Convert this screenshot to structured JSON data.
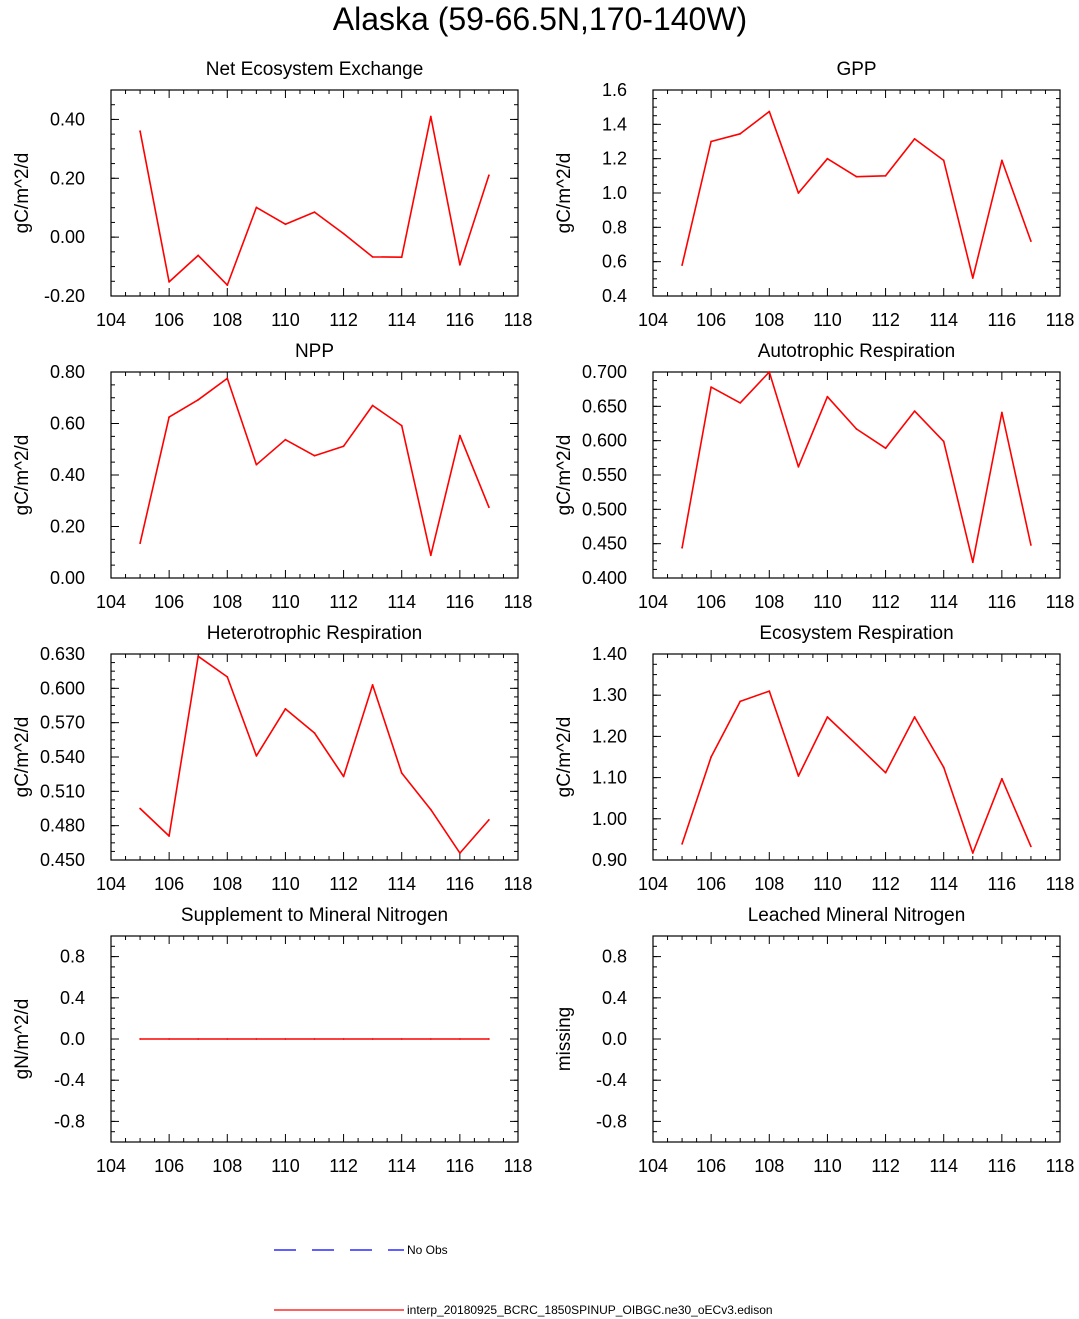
{
  "title": "Alaska (59-66.5N,170-140W)",
  "colors": {
    "model": "#ff0000",
    "obs": "#0000ff",
    "axis": "#000000"
  },
  "legend": {
    "obs_label": "No Obs",
    "model_label": "interp_20180925_BCRC_1850SPINUP_OIBGC.ne30_oECv3.edison"
  },
  "chart_data": [
    {
      "type": "line",
      "title": "Net Ecosystem Exchange",
      "ylabel": "gC/m^2/d",
      "xlim": [
        104,
        118
      ],
      "ylim": [
        -0.2,
        0.5
      ],
      "x_ticks": [
        "104",
        "106",
        "108",
        "110",
        "112",
        "114",
        "116",
        "118"
      ],
      "y_ticks": [
        {
          "v": -0.2,
          "label": "-0.20"
        },
        {
          "v": 0.0,
          "label": "0.00"
        },
        {
          "v": 0.2,
          "label": "0.20"
        },
        {
          "v": 0.4,
          "label": "0.40"
        }
      ],
      "y_minor_step": 0.05,
      "series": [
        {
          "name": "model",
          "x": [
            105,
            106,
            107,
            108,
            109,
            110,
            111,
            112,
            113,
            114,
            115,
            116,
            117
          ],
          "values": [
            0.36,
            -0.152,
            -0.062,
            -0.163,
            0.101,
            0.044,
            0.085,
            0.012,
            -0.067,
            -0.068,
            0.41,
            -0.094,
            0.21
          ]
        }
      ]
    },
    {
      "type": "line",
      "title": "GPP",
      "ylabel": "gC/m^2/d",
      "xlim": [
        104,
        118
      ],
      "ylim": [
        0.4,
        1.6
      ],
      "x_ticks": [
        "104",
        "106",
        "108",
        "110",
        "112",
        "114",
        "116",
        "118"
      ],
      "y_ticks": [
        {
          "v": 0.4,
          "label": "0.4"
        },
        {
          "v": 0.6,
          "label": "0.6"
        },
        {
          "v": 0.8,
          "label": "0.8"
        },
        {
          "v": 1.0,
          "label": "1.0"
        },
        {
          "v": 1.2,
          "label": "1.2"
        },
        {
          "v": 1.4,
          "label": "1.4"
        },
        {
          "v": 1.6,
          "label": "1.6"
        }
      ],
      "y_minor_step": 0.05,
      "series": [
        {
          "name": "model",
          "x": [
            105,
            106,
            107,
            108,
            109,
            110,
            111,
            112,
            113,
            114,
            115,
            116,
            117
          ],
          "values": [
            0.58,
            1.3,
            1.345,
            1.475,
            1.0,
            1.2,
            1.095,
            1.1,
            1.315,
            1.19,
            0.505,
            1.19,
            0.72
          ]
        }
      ]
    },
    {
      "type": "line",
      "title": "NPP",
      "ylabel": "gC/m^2/d",
      "xlim": [
        104,
        118
      ],
      "ylim": [
        0.0,
        0.8
      ],
      "x_ticks": [
        "104",
        "106",
        "108",
        "110",
        "112",
        "114",
        "116",
        "118"
      ],
      "y_ticks": [
        {
          "v": 0.0,
          "label": "0.00"
        },
        {
          "v": 0.2,
          "label": "0.20"
        },
        {
          "v": 0.4,
          "label": "0.40"
        },
        {
          "v": 0.6,
          "label": "0.60"
        },
        {
          "v": 0.8,
          "label": "0.80"
        }
      ],
      "y_minor_step": 0.05,
      "series": [
        {
          "name": "model",
          "x": [
            105,
            106,
            107,
            108,
            109,
            110,
            111,
            112,
            113,
            114,
            115,
            116,
            117
          ],
          "values": [
            0.135,
            0.625,
            0.692,
            0.775,
            0.44,
            0.537,
            0.475,
            0.512,
            0.67,
            0.592,
            0.088,
            0.553,
            0.275
          ]
        }
      ]
    },
    {
      "type": "line",
      "title": "Autotrophic Respiration",
      "ylabel": "gC/m^2/d",
      "xlim": [
        104,
        118
      ],
      "ylim": [
        0.4,
        0.7
      ],
      "x_ticks": [
        "104",
        "106",
        "108",
        "110",
        "112",
        "114",
        "116",
        "118"
      ],
      "y_ticks": [
        {
          "v": 0.4,
          "label": "0.400"
        },
        {
          "v": 0.45,
          "label": "0.450"
        },
        {
          "v": 0.5,
          "label": "0.500"
        },
        {
          "v": 0.55,
          "label": "0.550"
        },
        {
          "v": 0.6,
          "label": "0.600"
        },
        {
          "v": 0.65,
          "label": "0.650"
        },
        {
          "v": 0.7,
          "label": "0.700"
        }
      ],
      "y_minor_step": 0.0125,
      "series": [
        {
          "name": "model",
          "x": [
            105,
            106,
            107,
            108,
            109,
            110,
            111,
            112,
            113,
            114,
            115,
            116,
            117
          ],
          "values": [
            0.444,
            0.678,
            0.655,
            0.7,
            0.562,
            0.664,
            0.617,
            0.589,
            0.643,
            0.599,
            0.423,
            0.641,
            0.448
          ]
        }
      ]
    },
    {
      "type": "line",
      "title": "Heterotrophic Respiration",
      "ylabel": "gC/m^2/d",
      "xlim": [
        104,
        118
      ],
      "ylim": [
        0.45,
        0.63
      ],
      "x_ticks": [
        "104",
        "106",
        "108",
        "110",
        "112",
        "114",
        "116",
        "118"
      ],
      "y_ticks": [
        {
          "v": 0.45,
          "label": "0.450"
        },
        {
          "v": 0.48,
          "label": "0.480"
        },
        {
          "v": 0.51,
          "label": "0.510"
        },
        {
          "v": 0.54,
          "label": "0.540"
        },
        {
          "v": 0.57,
          "label": "0.570"
        },
        {
          "v": 0.6,
          "label": "0.600"
        },
        {
          "v": 0.63,
          "label": "0.630"
        }
      ],
      "y_minor_step": 0.0075,
      "series": [
        {
          "name": "model",
          "x": [
            105,
            106,
            107,
            108,
            109,
            110,
            111,
            112,
            113,
            114,
            115,
            116,
            117
          ],
          "values": [
            0.495,
            0.471,
            0.628,
            0.61,
            0.541,
            0.582,
            0.561,
            0.523,
            0.603,
            0.526,
            0.494,
            0.456,
            0.485
          ]
        }
      ]
    },
    {
      "type": "line",
      "title": "Ecosystem Respiration",
      "ylabel": "gC/m^2/d",
      "xlim": [
        104,
        118
      ],
      "ylim": [
        0.9,
        1.4
      ],
      "x_ticks": [
        "104",
        "106",
        "108",
        "110",
        "112",
        "114",
        "116",
        "118"
      ],
      "y_ticks": [
        {
          "v": 0.9,
          "label": "0.90"
        },
        {
          "v": 1.0,
          "label": "1.00"
        },
        {
          "v": 1.1,
          "label": "1.10"
        },
        {
          "v": 1.2,
          "label": "1.20"
        },
        {
          "v": 1.3,
          "label": "1.30"
        },
        {
          "v": 1.4,
          "label": "1.40"
        }
      ],
      "y_minor_step": 0.025,
      "series": [
        {
          "name": "model",
          "x": [
            105,
            106,
            107,
            108,
            109,
            110,
            111,
            112,
            113,
            114,
            115,
            116,
            117
          ],
          "values": [
            0.939,
            1.15,
            1.285,
            1.31,
            1.104,
            1.247,
            1.18,
            1.112,
            1.247,
            1.125,
            0.917,
            1.097,
            0.933
          ]
        }
      ]
    },
    {
      "type": "line",
      "title": "Supplement to Mineral Nitrogen",
      "ylabel": "gN/m^2/d",
      "xlim": [
        104,
        118
      ],
      "ylim": [
        -1.0,
        1.0
      ],
      "x_ticks": [
        "104",
        "106",
        "108",
        "110",
        "112",
        "114",
        "116",
        "118"
      ],
      "y_ticks": [
        {
          "v": -0.8,
          "label": "-0.8"
        },
        {
          "v": -0.4,
          "label": "-0.4"
        },
        {
          "v": 0.0,
          "label": "0.0"
        },
        {
          "v": 0.4,
          "label": "0.4"
        },
        {
          "v": 0.8,
          "label": "0.8"
        }
      ],
      "y_minor_step": 0.1,
      "series": [
        {
          "name": "model",
          "x": [
            105,
            106,
            107,
            108,
            109,
            110,
            111,
            112,
            113,
            114,
            115,
            116,
            117
          ],
          "values": [
            0,
            0,
            0,
            0,
            0,
            0,
            0,
            0,
            0,
            0,
            0,
            0,
            0
          ]
        }
      ]
    },
    {
      "type": "line",
      "title": "Leached Mineral Nitrogen",
      "ylabel": "missing",
      "xlim": [
        104,
        118
      ],
      "ylim": [
        -1.0,
        1.0
      ],
      "x_ticks": [
        "104",
        "106",
        "108",
        "110",
        "112",
        "114",
        "116",
        "118"
      ],
      "y_ticks": [
        {
          "v": -0.8,
          "label": "-0.8"
        },
        {
          "v": -0.4,
          "label": "-0.4"
        },
        {
          "v": 0.0,
          "label": "0.0"
        },
        {
          "v": 0.4,
          "label": "0.4"
        },
        {
          "v": 0.8,
          "label": "0.8"
        }
      ],
      "y_minor_step": 0.1,
      "series": []
    }
  ]
}
